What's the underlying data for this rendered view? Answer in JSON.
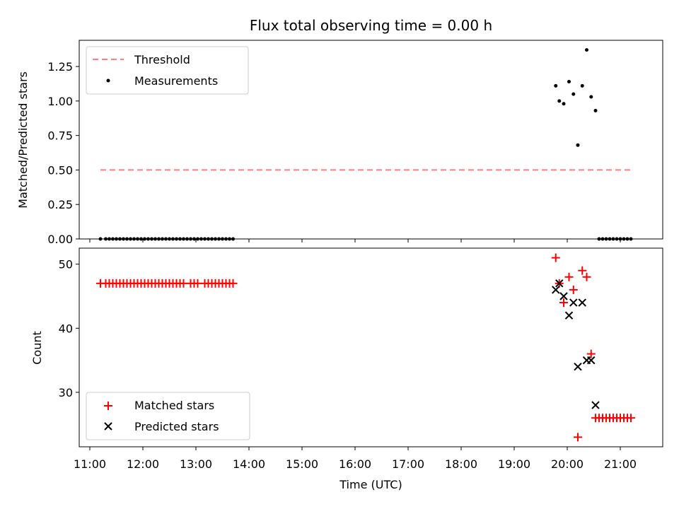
{
  "figure": {
    "title": "Flux total observing time = 0.00 h"
  },
  "colors": {
    "threshold": "#ff7f7f",
    "measurements": "#000000",
    "matched": "#ff0000",
    "predicted": "#000000"
  },
  "chart_data": [
    {
      "type": "scatter",
      "title": "Flux total observing time = 0.00 h",
      "xlabel": "",
      "ylabel": "Matched/Predicted stars",
      "xlim": [
        "10:48",
        "21:48"
      ],
      "ylim": [
        0,
        1.44
      ],
      "yticks": [
        0.0,
        0.25,
        0.5,
        0.75,
        1.0,
        1.25
      ],
      "ytick_labels": [
        "0.00",
        "0.25",
        "0.50",
        "0.75",
        "1.00",
        "1.25"
      ],
      "legend": {
        "position": "top-left",
        "entries": [
          "Threshold",
          "Measurements"
        ]
      },
      "threshold": {
        "name": "Threshold",
        "x": [
          "11:12",
          "21:12"
        ],
        "y": 0.5
      },
      "series": [
        {
          "name": "Measurements",
          "x": [
            "11:12",
            "11:18",
            "11:22",
            "11:26",
            "11:30",
            "11:34",
            "11:38",
            "11:42",
            "11:46",
            "11:50",
            "11:54",
            "11:58",
            "12:02",
            "12:06",
            "12:10",
            "12:14",
            "12:18",
            "12:22",
            "12:26",
            "12:30",
            "12:34",
            "12:38",
            "12:42",
            "12:46",
            "12:50",
            "12:54",
            "12:58",
            "13:02",
            "13:06",
            "13:10",
            "13:14",
            "13:18",
            "13:22",
            "13:26",
            "13:30",
            "13:34",
            "13:38",
            "13:42",
            "19:47",
            "19:51",
            "19:56",
            "20:02",
            "20:07",
            "20:12",
            "20:17",
            "20:22",
            "20:27",
            "20:32",
            "20:36",
            "20:40",
            "20:44",
            "20:48",
            "20:52",
            "20:56",
            "21:00",
            "21:04",
            "21:08",
            "21:12"
          ],
          "y": [
            0,
            0,
            0,
            0,
            0,
            0,
            0,
            0,
            0,
            0,
            0,
            0,
            0,
            0,
            0,
            0,
            0,
            0,
            0,
            0,
            0,
            0,
            0,
            0,
            0,
            0,
            0,
            0,
            0,
            0,
            0,
            0,
            0,
            0,
            0,
            0,
            0,
            0,
            1.11,
            1.0,
            0.98,
            1.14,
            1.05,
            0.68,
            1.11,
            1.37,
            1.03,
            0.93,
            0,
            0,
            0,
            0,
            0,
            0,
            0,
            0,
            0,
            0
          ]
        }
      ]
    },
    {
      "type": "scatter",
      "xlabel": "Time (UTC)",
      "ylabel": "Count",
      "xlim": [
        "10:48",
        "21:48"
      ],
      "ylim": [
        21.5,
        52.5
      ],
      "xticks": [
        "11:00",
        "12:00",
        "13:00",
        "14:00",
        "15:00",
        "16:00",
        "17:00",
        "18:00",
        "19:00",
        "20:00",
        "21:00"
      ],
      "yticks": [
        30,
        40,
        50
      ],
      "ytick_labels": [
        "30",
        "40",
        "50"
      ],
      "legend": {
        "position": "bottom-left",
        "entries": [
          "Matched stars",
          "Predicted stars"
        ]
      },
      "series": [
        {
          "name": "Matched stars",
          "x": [
            "11:12",
            "11:18",
            "11:22",
            "11:26",
            "11:30",
            "11:34",
            "11:38",
            "11:42",
            "11:46",
            "11:50",
            "11:54",
            "11:58",
            "12:02",
            "12:06",
            "12:10",
            "12:14",
            "12:18",
            "12:22",
            "12:26",
            "12:30",
            "12:34",
            "12:38",
            "12:42",
            "12:46",
            "12:54",
            "12:58",
            "13:02",
            "13:10",
            "13:14",
            "13:18",
            "13:22",
            "13:26",
            "13:30",
            "13:34",
            "13:38",
            "13:42",
            "19:47",
            "19:51",
            "19:56",
            "20:02",
            "20:07",
            "20:12",
            "20:17",
            "20:22",
            "20:27",
            "20:32",
            "20:36",
            "20:40",
            "20:44",
            "20:48",
            "20:52",
            "20:56",
            "21:00",
            "21:04",
            "21:08",
            "21:12"
          ],
          "y": [
            47,
            47,
            47,
            47,
            47,
            47,
            47,
            47,
            47,
            47,
            47,
            47,
            47,
            47,
            47,
            47,
            47,
            47,
            47,
            47,
            47,
            47,
            47,
            47,
            47,
            47,
            47,
            47,
            47,
            47,
            47,
            47,
            47,
            47,
            47,
            47,
            51,
            47,
            44,
            48,
            46,
            23,
            49,
            48,
            36,
            26,
            26,
            26,
            26,
            26,
            26,
            26,
            26,
            26,
            26,
            26
          ]
        },
        {
          "name": "Predicted stars",
          "x": [
            "19:47",
            "19:51",
            "19:56",
            "20:02",
            "20:07",
            "20:12",
            "20:17",
            "20:22",
            "20:27",
            "20:32"
          ],
          "y": [
            46,
            47,
            45,
            42,
            44,
            34,
            44,
            35,
            35,
            28
          ]
        }
      ]
    }
  ]
}
